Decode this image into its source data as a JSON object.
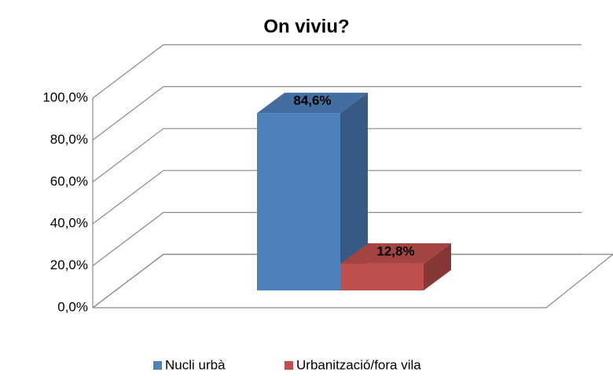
{
  "chart_data": {
    "type": "bar3d",
    "title": "On viviu?",
    "series": [
      {
        "name": "Nucli urbà",
        "color": "#4f81bd",
        "values": [
          84.6
        ],
        "value_labels": [
          "84,6%"
        ]
      },
      {
        "name": "Urbanització/fora vila",
        "color": "#c0504d",
        "values": [
          12.8
        ],
        "value_labels": [
          "12,8%"
        ]
      }
    ],
    "ylim": [
      0,
      100
    ],
    "yticks": [
      {
        "value": 0,
        "label": "0,0%"
      },
      {
        "value": 20,
        "label": "20,0%"
      },
      {
        "value": 40,
        "label": "40,0%"
      },
      {
        "value": 60,
        "label": "60,0%"
      },
      {
        "value": 80,
        "label": "80,0%"
      },
      {
        "value": 100,
        "label": "100,0%"
      }
    ],
    "grid": true,
    "legend": "bottom"
  }
}
